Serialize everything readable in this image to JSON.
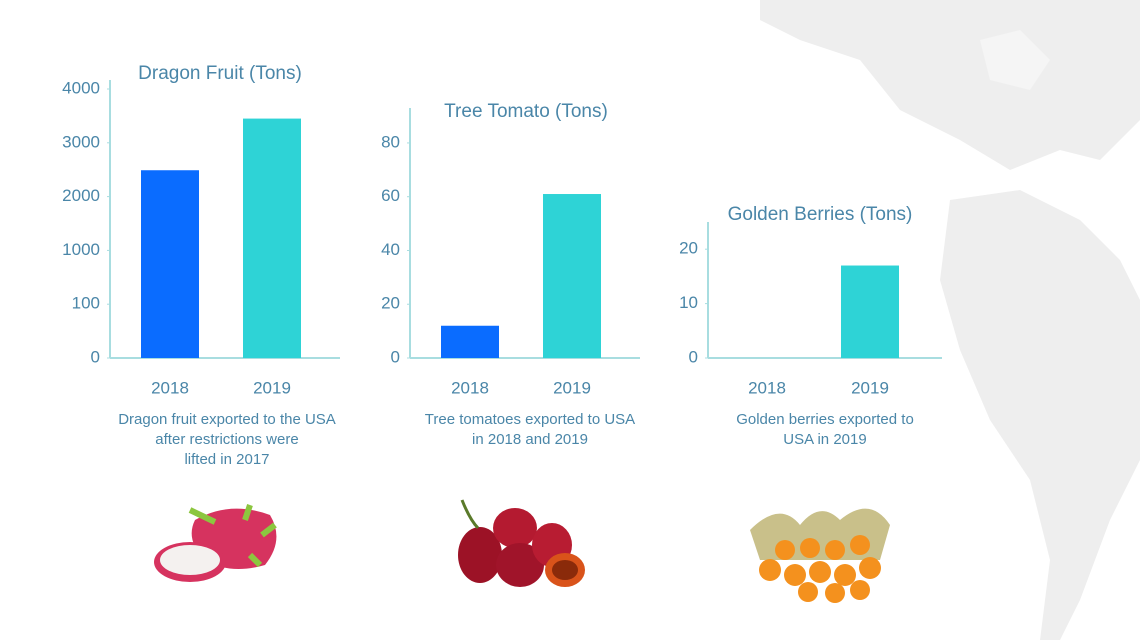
{
  "chart_data": [
    {
      "type": "bar",
      "title": "Dragon Fruit (Tons)",
      "categories": [
        "2018",
        "2019"
      ],
      "values": [
        2490,
        3450
      ],
      "colors": [
        "#0a6cff",
        "#2ed3d6"
      ],
      "ylim": [
        0,
        4000
      ],
      "yticks": [
        0,
        100,
        1000,
        2000,
        3000,
        4000
      ],
      "scale": "piecewise",
      "caption": [
        "Dragon fruit exported to the USA",
        "after restrictions were",
        "lifted in 2017"
      ]
    },
    {
      "type": "bar",
      "title": "Tree Tomato (Tons)",
      "categories": [
        "2018",
        "2019"
      ],
      "values": [
        12,
        61
      ],
      "colors": [
        "#0a6cff",
        "#2ed3d6"
      ],
      "ylim": [
        0,
        93
      ],
      "yticks": [
        0,
        20,
        40,
        60,
        80
      ],
      "caption": [
        "Tree tomatoes exported to USA",
        "in 2018 and 2019"
      ]
    },
    {
      "type": "bar",
      "title": "Golden Berries (Tons)",
      "categories": [
        "2018",
        "2019"
      ],
      "values": [
        0,
        17
      ],
      "colors": [
        "#0a6cff",
        "#2ed3d6"
      ],
      "ylim": [
        0,
        25
      ],
      "yticks": [
        0,
        10,
        20
      ],
      "caption": [
        "Golden berries exported to",
        "USA in 2019"
      ]
    }
  ]
}
